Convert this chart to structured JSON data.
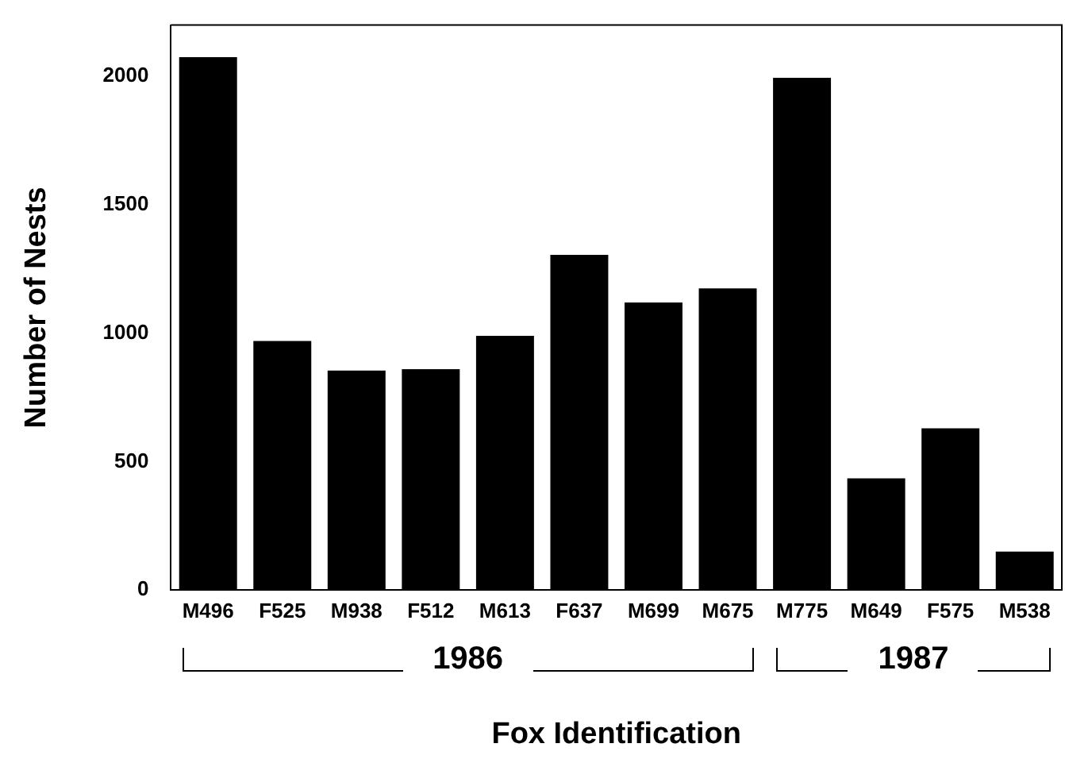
{
  "chart_data": {
    "type": "bar",
    "xlabel": "Fox Identification",
    "ylabel": "Number of Nests",
    "categories": [
      "M496",
      "F525",
      "M938",
      "F512",
      "M613",
      "F637",
      "M699",
      "M675",
      "M775",
      "M649",
      "F575",
      "M538"
    ],
    "values": [
      2075,
      970,
      855,
      860,
      990,
      1305,
      1120,
      1175,
      1995,
      435,
      630,
      150
    ],
    "color": "#000000",
    "ylim": [
      0,
      2200
    ],
    "yticks": [
      0,
      500,
      1000,
      1500,
      2000
    ],
    "grid": false,
    "annotations": [
      "1986",
      "1987"
    ]
  }
}
